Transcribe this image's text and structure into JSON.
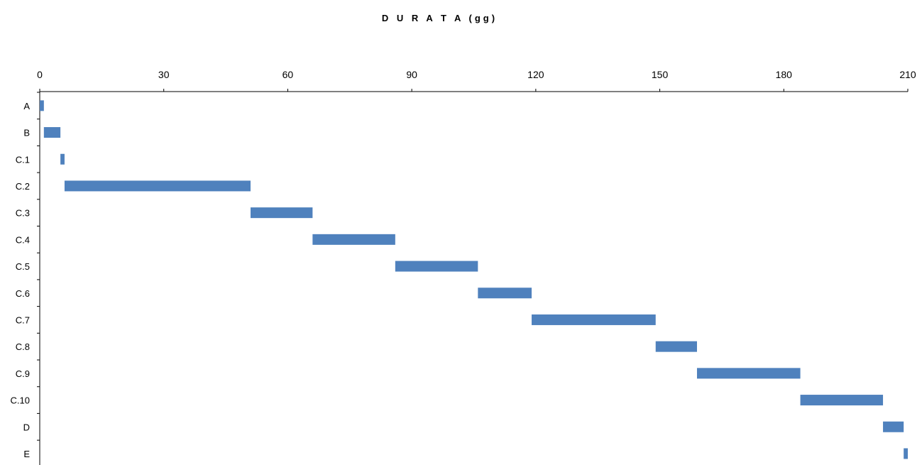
{
  "chart_data": {
    "type": "bar",
    "orientation": "horizontal",
    "stacked_offset": true,
    "title": "D U R A T A  (gg)",
    "xlabel": "",
    "ylabel": "",
    "x_axis_position": "top",
    "xlim": [
      0,
      210
    ],
    "xticks": [
      0,
      30,
      60,
      90,
      120,
      150,
      180,
      210
    ],
    "grid": false,
    "legend": "none",
    "bar_color": "#4F81BD",
    "categories": [
      "A",
      "B",
      "C.1",
      "C.2",
      "C.3",
      "C.4",
      "C.5",
      "C.6",
      "C.7",
      "C.8",
      "C.9",
      "C.10",
      "D",
      "E"
    ],
    "series": [
      {
        "role": "start",
        "values": [
          0,
          1,
          5,
          6,
          51,
          66,
          86,
          106,
          119,
          149,
          159,
          184,
          204,
          209
        ]
      },
      {
        "role": "duration",
        "values": [
          1,
          4,
          1,
          45,
          15,
          20,
          20,
          13,
          30,
          10,
          25,
          20,
          5,
          1
        ]
      }
    ]
  }
}
